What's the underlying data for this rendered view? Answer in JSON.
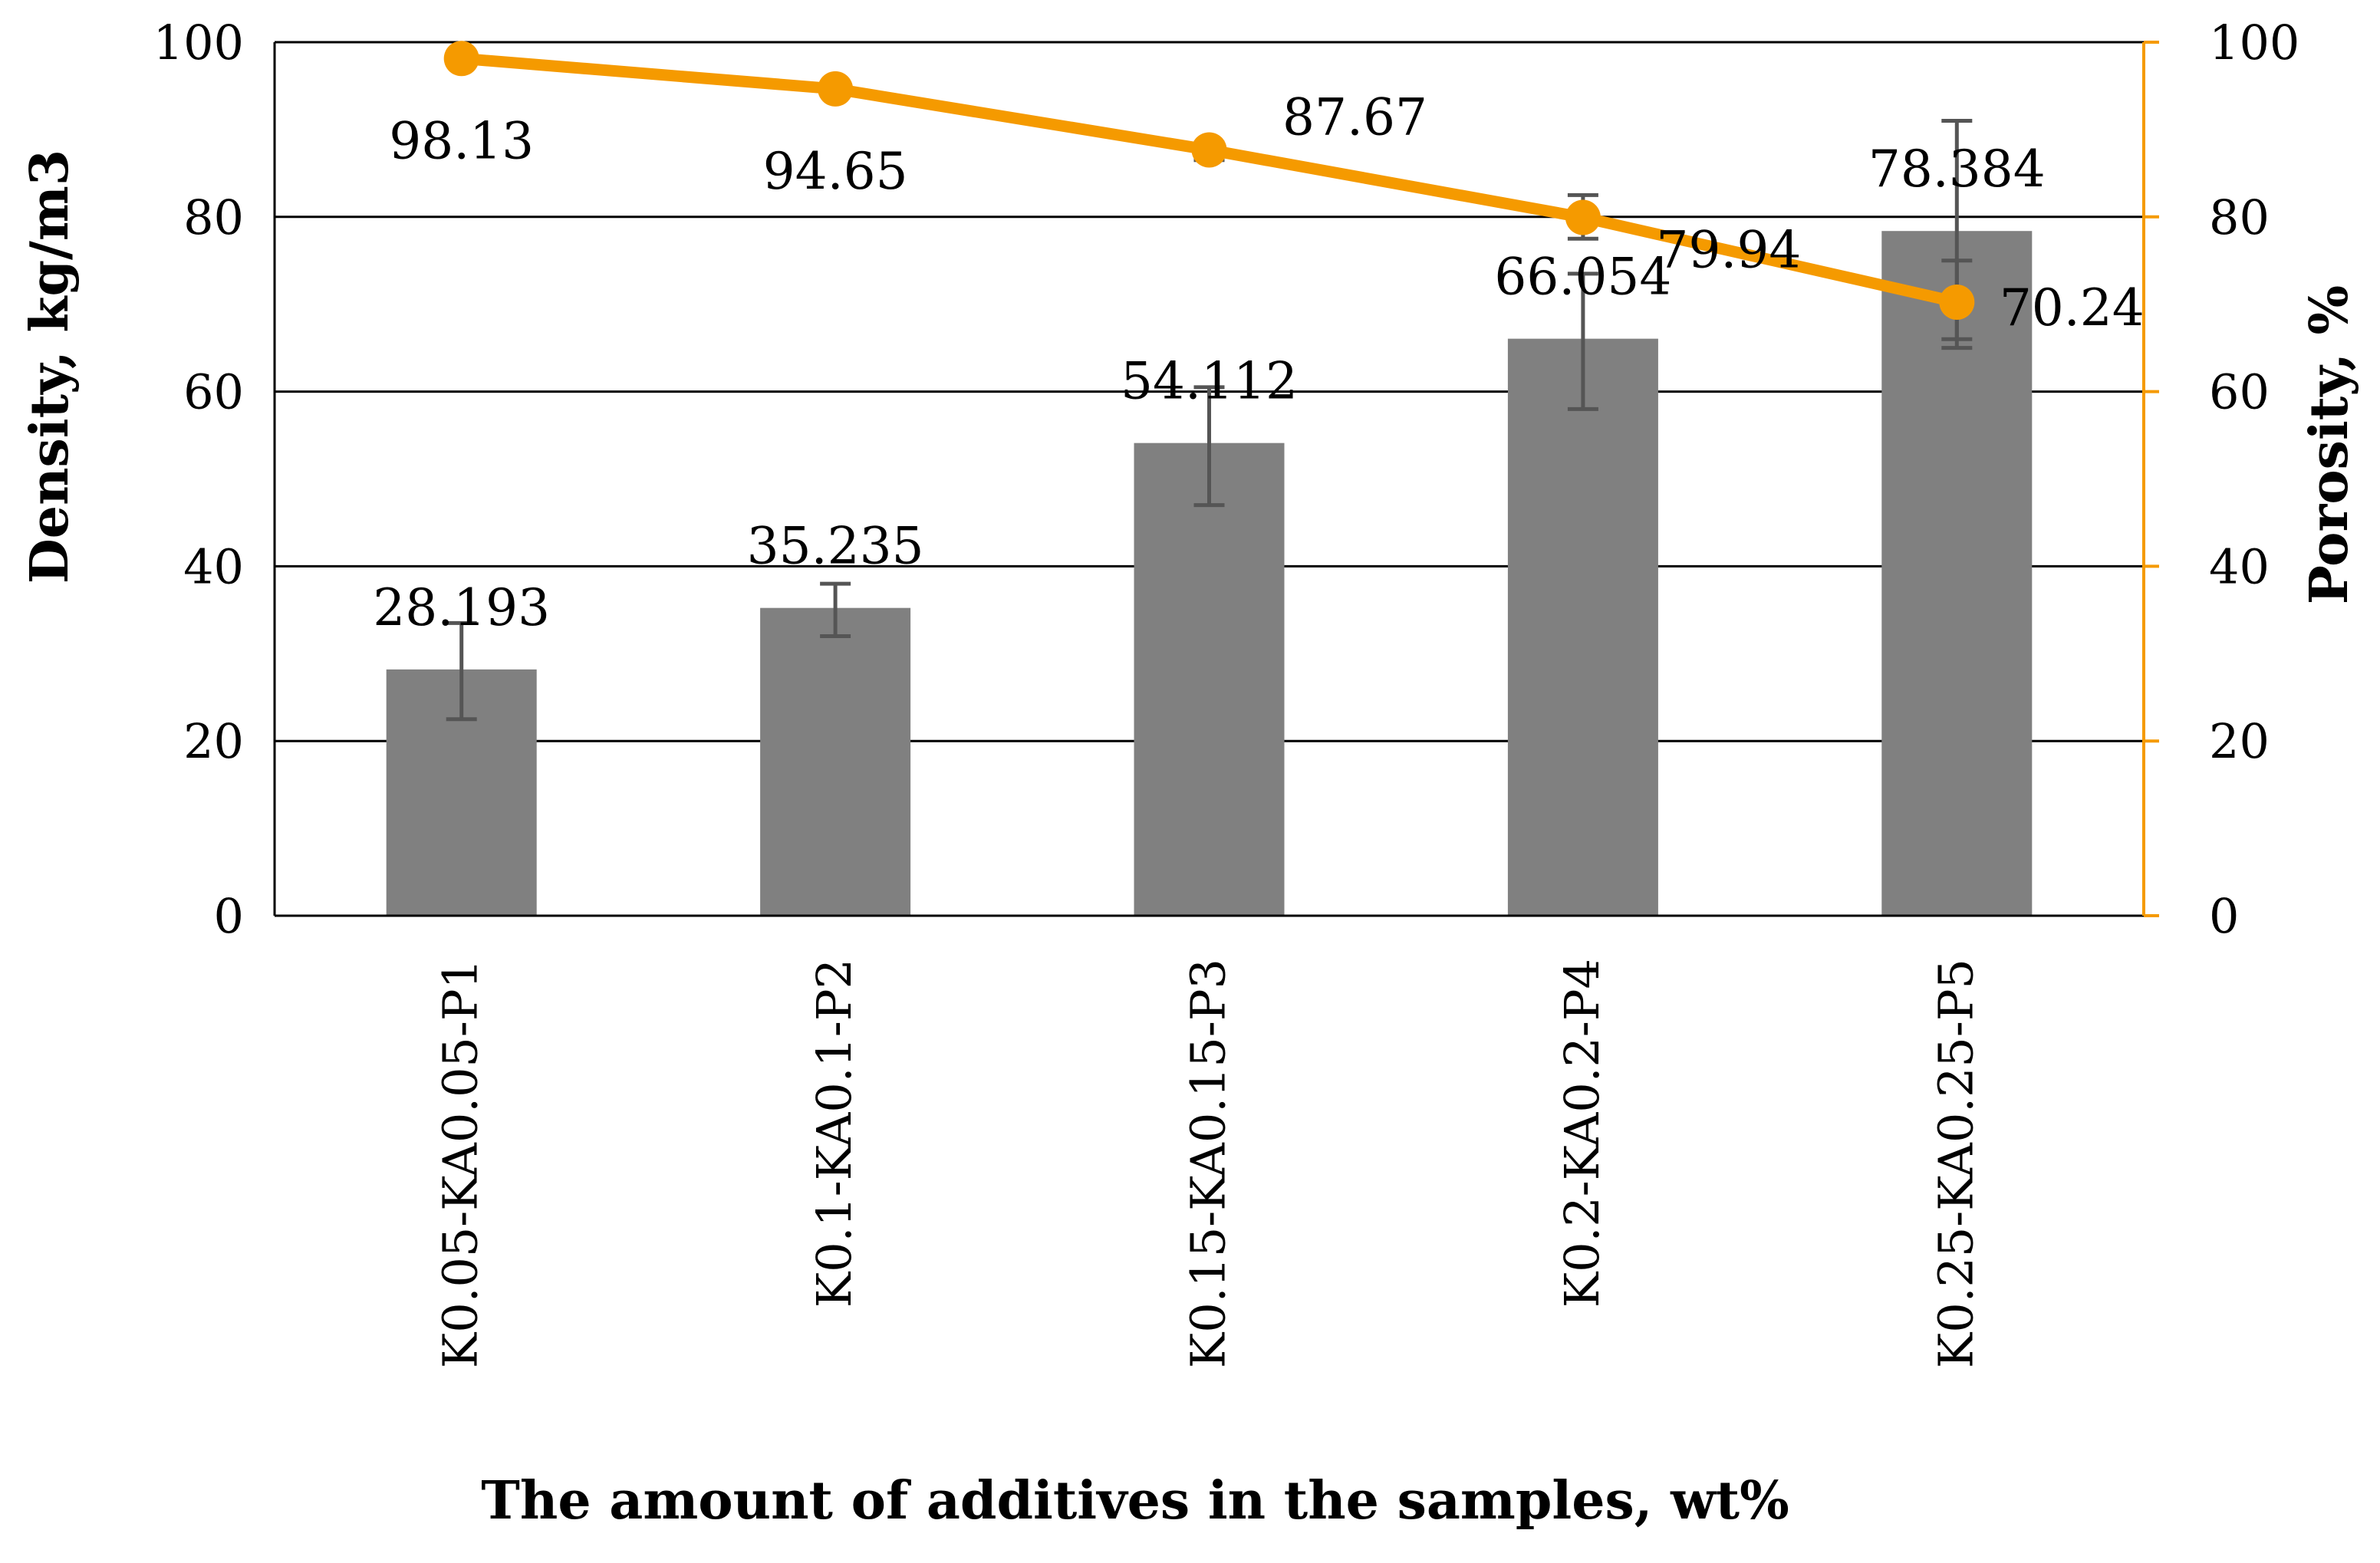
{
  "chart_data": {
    "type": "bar",
    "xlabel": "The amount of additives in the samples, wt%",
    "ylabel": "Density, kg/m3",
    "y2label": "Porosity, %",
    "ylim": [
      0,
      100
    ],
    "y2lim": [
      0,
      100
    ],
    "yticks": [
      "0",
      "20",
      "40",
      "60",
      "80",
      "100"
    ],
    "y2ticks": [
      "0",
      "20",
      "40",
      "60",
      "80",
      "100"
    ],
    "grid": true,
    "categories": [
      "K0.05-KA0.05-P1",
      "K0.1-KA0.1-P2",
      "K0.15-KA0.15-P3",
      "K0.2-KA0.2-P4",
      "K0.25-KA0.25-P5"
    ],
    "series": [
      {
        "name": "Density",
        "type": "bar",
        "axis": "left",
        "color": "#808080",
        "values": [
          28.193,
          35.235,
          54.112,
          66.054,
          78.384
        ],
        "labels": [
          "28.193",
          "35.235",
          "54.112",
          "66.054",
          "78.384"
        ],
        "error_low": [
          22.5,
          32.0,
          47.0,
          58.0,
          65.0
        ],
        "error_high": [
          33.5,
          38.0,
          60.5,
          73.5,
          91.0
        ]
      },
      {
        "name": "Porosity",
        "type": "line",
        "axis": "right",
        "color": "#F59A00",
        "values": [
          98.13,
          94.65,
          87.67,
          79.94,
          70.24
        ],
        "labels": [
          "98.13",
          "94.65",
          "87.67",
          "79.94",
          "70.24"
        ],
        "error_low": [
          98.13,
          94.65,
          86.5,
          77.5,
          66.0
        ],
        "error_high": [
          98.13,
          94.65,
          88.5,
          82.5,
          75.0
        ]
      }
    ]
  }
}
